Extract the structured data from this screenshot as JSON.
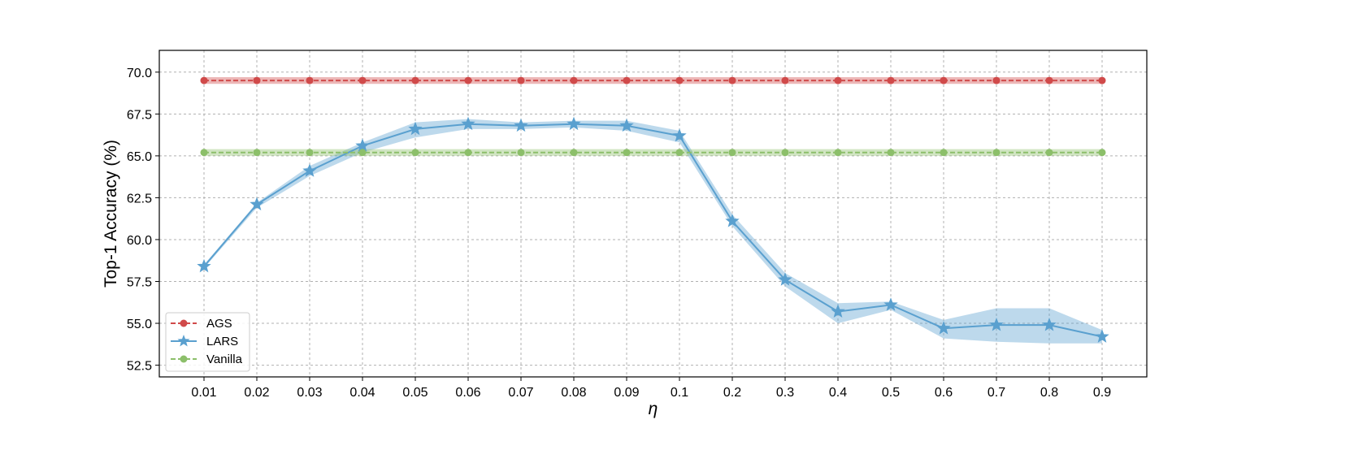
{
  "chart_data": {
    "type": "line",
    "title": "",
    "xlabel": "η",
    "ylabel": "Top-1 Accuracy (%)",
    "categories": [
      "0.01",
      "0.02",
      "0.03",
      "0.04",
      "0.05",
      "0.06",
      "0.07",
      "0.08",
      "0.09",
      "0.1",
      "0.2",
      "0.3",
      "0.4",
      "0.5",
      "0.6",
      "0.7",
      "0.8",
      "0.9"
    ],
    "ylim": [
      51.8,
      71.3
    ],
    "yticks": [
      "52.5",
      "55.0",
      "57.5",
      "60.0",
      "62.5",
      "65.0",
      "67.5",
      "70.0"
    ],
    "grid": true,
    "legend_position": "lower-left",
    "series": [
      {
        "name": "AGS",
        "color": "#d04a4a",
        "line_style": "dashed",
        "marker": "circle",
        "values": [
          69.5,
          69.5,
          69.5,
          69.5,
          69.5,
          69.5,
          69.5,
          69.5,
          69.5,
          69.5,
          69.5,
          69.5,
          69.5,
          69.5,
          69.5,
          69.5,
          69.5,
          69.5
        ],
        "band_low": [
          69.3,
          69.3,
          69.3,
          69.3,
          69.3,
          69.3,
          69.3,
          69.3,
          69.3,
          69.3,
          69.3,
          69.3,
          69.3,
          69.3,
          69.3,
          69.3,
          69.3,
          69.3
        ],
        "band_high": [
          69.7,
          69.7,
          69.7,
          69.7,
          69.7,
          69.7,
          69.7,
          69.7,
          69.7,
          69.7,
          69.7,
          69.7,
          69.7,
          69.7,
          69.7,
          69.7,
          69.7,
          69.7
        ]
      },
      {
        "name": "LARS",
        "color": "#5aa0cf",
        "line_style": "solid",
        "marker": "star",
        "values": [
          58.4,
          62.1,
          64.1,
          65.6,
          66.6,
          66.9,
          66.8,
          66.9,
          66.8,
          66.2,
          61.1,
          57.6,
          55.7,
          56.1,
          54.7,
          54.9,
          54.9,
          54.2
        ],
        "band_low": [
          58.3,
          61.9,
          63.8,
          65.2,
          66.1,
          66.6,
          66.6,
          66.7,
          66.5,
          65.8,
          60.8,
          57.2,
          55.0,
          55.8,
          54.1,
          53.9,
          53.8,
          53.8
        ],
        "band_high": [
          58.5,
          62.2,
          64.4,
          65.8,
          67.0,
          67.2,
          67.0,
          67.1,
          67.1,
          66.5,
          61.5,
          58.0,
          56.2,
          56.3,
          55.2,
          55.9,
          55.9,
          54.6
        ]
      },
      {
        "name": "Vanilla",
        "color": "#8cbf6a",
        "line_style": "dashed",
        "marker": "circle",
        "values": [
          65.2,
          65.2,
          65.2,
          65.2,
          65.2,
          65.2,
          65.2,
          65.2,
          65.2,
          65.2,
          65.2,
          65.2,
          65.2,
          65.2,
          65.2,
          65.2,
          65.2,
          65.2
        ],
        "band_low": [
          65.0,
          65.0,
          65.0,
          65.0,
          65.0,
          65.0,
          65.0,
          65.0,
          65.0,
          65.0,
          65.0,
          65.0,
          65.0,
          65.0,
          65.0,
          65.0,
          65.0,
          65.0
        ],
        "band_high": [
          65.4,
          65.4,
          65.4,
          65.4,
          65.4,
          65.4,
          65.4,
          65.4,
          65.4,
          65.4,
          65.4,
          65.4,
          65.4,
          65.4,
          65.4,
          65.4,
          65.4,
          65.4
        ]
      }
    ]
  }
}
